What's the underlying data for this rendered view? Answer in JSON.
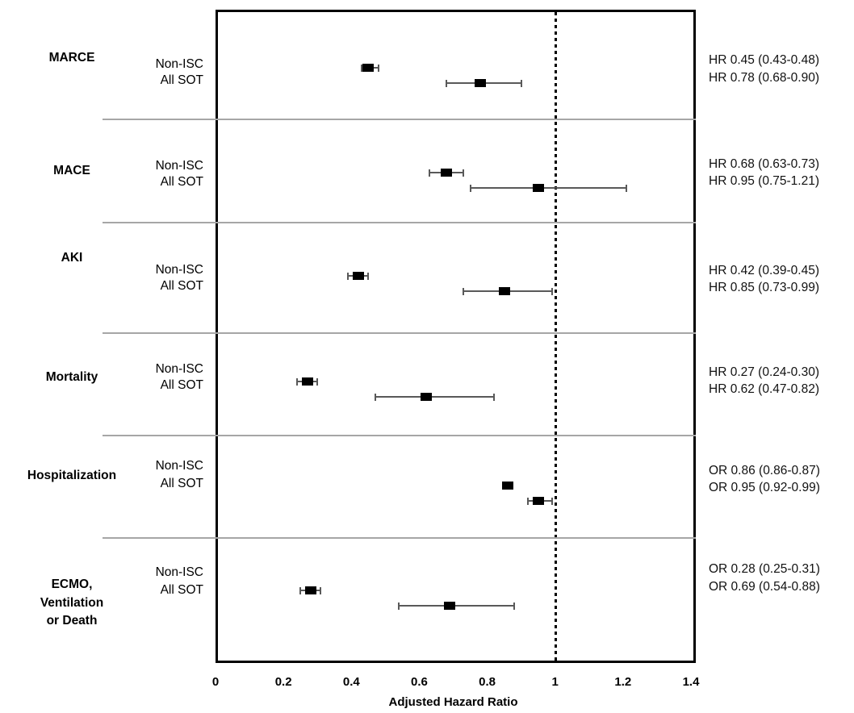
{
  "chart_data": {
    "type": "forest",
    "title": "",
    "xlabel": "Adjusted Hazard Ratio",
    "x_axis": {
      "min": 0,
      "max": 1.4,
      "ticks": [
        0,
        0.2,
        0.4,
        0.6,
        0.8,
        1,
        1.2,
        1.4
      ],
      "tick_labels": [
        "0",
        "0.2",
        "0.4",
        "0.6",
        "0.8",
        "1",
        "1.2",
        "1.4"
      ]
    },
    "reference_line": 1,
    "grid": false,
    "legend": "none",
    "group_labels": [
      "Non-ISC",
      "All SOT"
    ],
    "sections": [
      {
        "outcome": "MARCE",
        "outcome_lines": [
          "MARCE"
        ],
        "rows": [
          {
            "group": "Non-ISC",
            "measure": "HR",
            "estimate": 0.45,
            "ci_low": 0.43,
            "ci_high": 0.48,
            "label": "HR 0.45 (0.43-0.48)"
          },
          {
            "group": "All SOT",
            "measure": "HR",
            "estimate": 0.78,
            "ci_low": 0.68,
            "ci_high": 0.9,
            "label": "HR 0.78 (0.68-0.90)"
          }
        ]
      },
      {
        "outcome": "MACE",
        "outcome_lines": [
          "MACE"
        ],
        "rows": [
          {
            "group": "Non-ISC",
            "measure": "HR",
            "estimate": 0.68,
            "ci_low": 0.63,
            "ci_high": 0.73,
            "label": "HR 0.68 (0.63-0.73)"
          },
          {
            "group": "All SOT",
            "measure": "HR",
            "estimate": 0.95,
            "ci_low": 0.75,
            "ci_high": 1.21,
            "label": "HR 0.95 (0.75-1.21)"
          }
        ]
      },
      {
        "outcome": "AKI",
        "outcome_lines": [
          "AKI"
        ],
        "rows": [
          {
            "group": "Non-ISC",
            "measure": "HR",
            "estimate": 0.42,
            "ci_low": 0.39,
            "ci_high": 0.45,
            "label": "HR 0.42 (0.39-0.45)"
          },
          {
            "group": "All SOT",
            "measure": "HR",
            "estimate": 0.85,
            "ci_low": 0.73,
            "ci_high": 0.99,
            "label": "HR 0.85 (0.73-0.99)"
          }
        ]
      },
      {
        "outcome": "Mortality",
        "outcome_lines": [
          "Mortality"
        ],
        "rows": [
          {
            "group": "Non-ISC",
            "measure": "HR",
            "estimate": 0.27,
            "ci_low": 0.24,
            "ci_high": 0.3,
            "label": "HR 0.27 (0.24-0.30)"
          },
          {
            "group": "All SOT",
            "measure": "HR",
            "estimate": 0.62,
            "ci_low": 0.47,
            "ci_high": 0.82,
            "label": "HR 0.62 (0.47-0.82)"
          }
        ]
      },
      {
        "outcome": "Hospitalization",
        "outcome_lines": [
          "Hospitalization"
        ],
        "rows": [
          {
            "group": "Non-ISC",
            "measure": "OR",
            "estimate": 0.86,
            "ci_low": 0.86,
            "ci_high": 0.87,
            "label": "OR 0.86 (0.86-0.87)"
          },
          {
            "group": "All SOT",
            "measure": "OR",
            "estimate": 0.95,
            "ci_low": 0.92,
            "ci_high": 0.99,
            "label": "OR 0.95 (0.92-0.99)"
          }
        ]
      },
      {
        "outcome": "ECMO, Ventilation or Death",
        "outcome_lines": [
          "ECMO,",
          "Ventilation",
          "or Death"
        ],
        "rows": [
          {
            "group": "Non-ISC",
            "measure": "OR",
            "estimate": 0.28,
            "ci_low": 0.25,
            "ci_high": 0.31,
            "label": "OR 0.28 (0.25-0.31)"
          },
          {
            "group": "All SOT",
            "measure": "OR",
            "estimate": 0.69,
            "ci_low": 0.54,
            "ci_high": 0.88,
            "label": "OR 0.69 (0.54-0.88)"
          }
        ]
      }
    ],
    "colors": {
      "marker": "#000000",
      "ci_line": "#595959",
      "separator": "#a6a6a6",
      "frame": "#000000",
      "text": "#000000"
    }
  }
}
